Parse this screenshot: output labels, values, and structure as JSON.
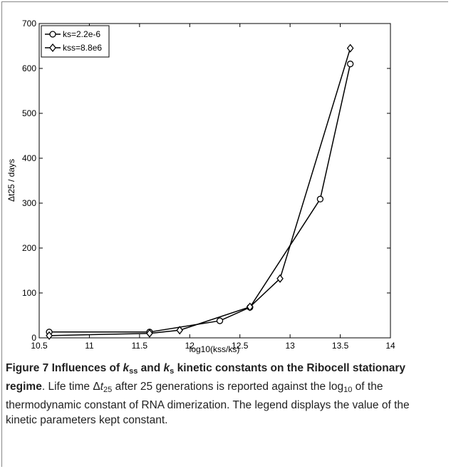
{
  "chart_data": {
    "type": "line",
    "x_label": "log10(kss/ks)",
    "y_label": "Δt25 / days",
    "xlim": [
      10.5,
      14
    ],
    "xticks": [
      10.5,
      11,
      11.5,
      12,
      12.5,
      13,
      13.5,
      14
    ],
    "ylim": [
      0,
      700
    ],
    "yticks": [
      0,
      100,
      200,
      300,
      400,
      500,
      600,
      700
    ],
    "legend": "upper left",
    "series": [
      {
        "name": "ks=2.2e-6",
        "color": "#000000",
        "marker": "circle",
        "x": [
          10.6,
          11.6,
          12.3,
          12.6,
          13.3,
          13.6
        ],
        "values": [
          13,
          13,
          38,
          68,
          309,
          610
        ]
      },
      {
        "name": "kss=8.8e6",
        "color": "#000000",
        "marker": "diamond",
        "x": [
          10.6,
          11.6,
          11.9,
          12.6,
          12.9,
          13.6
        ],
        "values": [
          5,
          10,
          17,
          69,
          132,
          645
        ]
      }
    ]
  },
  "caption": {
    "segments": [
      {
        "text": "Figure 7 Influences of ",
        "style": "bold"
      },
      {
        "text": "k",
        "style": "bold-italic"
      },
      {
        "text": "ss",
        "style": "bold-sub"
      },
      {
        "text": " and ",
        "style": "bold"
      },
      {
        "text": "k",
        "style": "bold-italic"
      },
      {
        "text": "s",
        "style": "bold-sub"
      },
      {
        "text": " kinetic constants on the Ribocell stationary regime",
        "style": "bold"
      },
      {
        "text": ". Life time Δ",
        "style": "normal"
      },
      {
        "text": "t",
        "style": "italic"
      },
      {
        "text": "25",
        "style": "sub"
      },
      {
        "text": " after 25 generations is reported against the log",
        "style": "normal"
      },
      {
        "text": "10",
        "style": "sub"
      },
      {
        "text": " of the thermodynamic constant of RNA dimerization. The legend displays the value of the kinetic parameters kept constant.",
        "style": "normal"
      }
    ]
  }
}
